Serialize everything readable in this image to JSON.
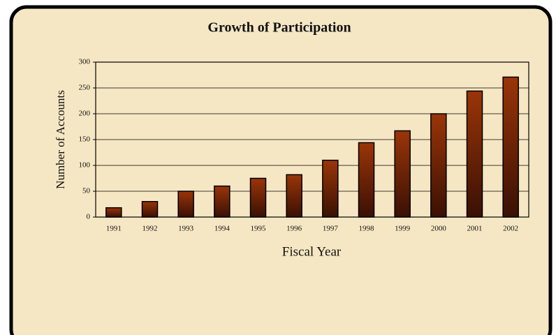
{
  "chart_data": {
    "type": "bar",
    "title": "Growth of Participation",
    "x_label": "Fiscal Year",
    "y_label": "Number of Accounts",
    "categories": [
      "1991",
      "1992",
      "1993",
      "1994",
      "1995",
      "1996",
      "1997",
      "1998",
      "1999",
      "2000",
      "2001",
      "2002"
    ],
    "values": [
      18,
      30,
      50,
      60,
      75,
      82,
      110,
      144,
      167,
      200,
      244,
      271
    ],
    "color": "#9a3508",
    "ylim": [
      0,
      300
    ],
    "yticks": [
      0,
      50,
      100,
      150,
      200,
      250,
      300
    ],
    "grid": true
  }
}
